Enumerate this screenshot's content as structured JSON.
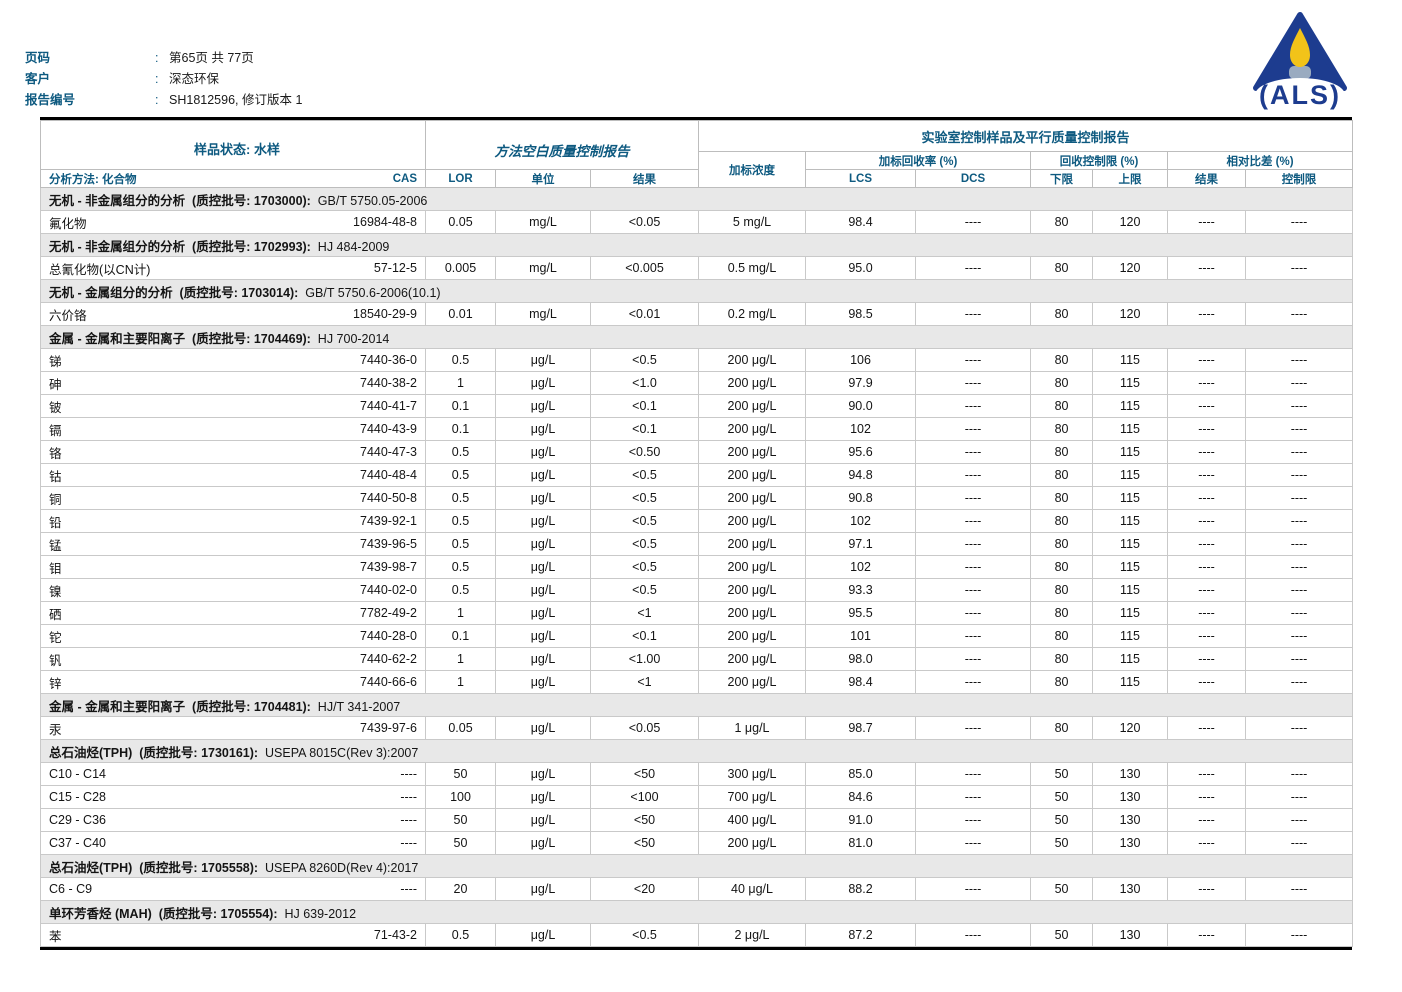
{
  "page_header": {
    "colon": ":",
    "fields": [
      {
        "label": "页码",
        "value": "第65页 共 77页"
      },
      {
        "label": "客户",
        "value": "深态环保"
      },
      {
        "label": "报告编号",
        "value": "SH1812596, 修订版本 1"
      }
    ]
  },
  "logo": {
    "name": "als-flame-logo",
    "text": "(ALS)",
    "navy": "#1d3c8f",
    "flame_yellow": "#f2c319",
    "burner_grey": "#9aabc0"
  },
  "colors": {
    "accent_blue": "#0e5a80",
    "section_bg": "#e8e8e8",
    "border_grey": "#c9c9c9",
    "thick_divider_grey": "#b3b3b3",
    "line_black": "#000000"
  },
  "table": {
    "header": {
      "sample_status": "样品状态: 水样",
      "method_blank_title": "方法空白质量控制报告",
      "lab_control_title": "实验室控制样品及平行质量控制报告",
      "spike_conc": "加标浓度",
      "spike_recovery": "加标回收率 (%)",
      "recovery_limits": "回收控制限 (%)",
      "relative_diff": "相对比差 (%)",
      "analysis_method": "分析方法: 化合物",
      "cas": "CAS",
      "lor": "LOR",
      "unit": "单位",
      "result": "结果",
      "lcs": "LCS",
      "dcs": "DCS",
      "lower": "下限",
      "upper": "上限",
      "rpd_result": "结果",
      "rpd_limit": "控制限"
    },
    "columns_order": [
      "compound",
      "cas",
      "lor",
      "unit",
      "result",
      "spike_conc",
      "lcs",
      "dcs",
      "lower",
      "upper",
      "rpd_result",
      "rpd_limit"
    ],
    "sections": [
      {
        "title": "无机 - 非金属组分的分析  (质控批号: 1703000):",
        "method": "  GB/T 5750.05-2006",
        "rows": [
          [
            "氟化物",
            "16984-48-8",
            "0.05",
            "mg/L",
            "<0.05",
            "5 mg/L",
            "98.4",
            "----",
            "80",
            "120",
            "----",
            "----"
          ]
        ]
      },
      {
        "title": "无机 - 非金属组分的分析  (质控批号: 1702993):",
        "method": "  HJ 484-2009",
        "rows": [
          [
            "总氰化物(以CN计)",
            "57-12-5",
            "0.005",
            "mg/L",
            "<0.005",
            "0.5 mg/L",
            "95.0",
            "----",
            "80",
            "120",
            "----",
            "----"
          ]
        ]
      },
      {
        "title": "无机 - 金属组分的分析  (质控批号: 1703014):",
        "method": "  GB/T 5750.6-2006(10.1)",
        "rows": [
          [
            "六价铬",
            "18540-29-9",
            "0.01",
            "mg/L",
            "<0.01",
            "0.2 mg/L",
            "98.5",
            "----",
            "80",
            "120",
            "----",
            "----"
          ]
        ]
      },
      {
        "title": "金属 - 金属和主要阳离子  (质控批号: 1704469):",
        "method": "  HJ 700-2014",
        "rows": [
          [
            "锑",
            "7440-36-0",
            "0.5",
            "μg/L",
            "<0.5",
            "200 μg/L",
            "106",
            "----",
            "80",
            "115",
            "----",
            "----"
          ],
          [
            "砷",
            "7440-38-2",
            "1",
            "μg/L",
            "<1.0",
            "200 μg/L",
            "97.9",
            "----",
            "80",
            "115",
            "----",
            "----"
          ],
          [
            "铍",
            "7440-41-7",
            "0.1",
            "μg/L",
            "<0.1",
            "200 μg/L",
            "90.0",
            "----",
            "80",
            "115",
            "----",
            "----"
          ],
          [
            "镉",
            "7440-43-9",
            "0.1",
            "μg/L",
            "<0.1",
            "200 μg/L",
            "102",
            "----",
            "80",
            "115",
            "----",
            "----"
          ],
          [
            "铬",
            "7440-47-3",
            "0.5",
            "μg/L",
            "<0.50",
            "200 μg/L",
            "95.6",
            "----",
            "80",
            "115",
            "----",
            "----"
          ],
          [
            "钴",
            "7440-48-4",
            "0.5",
            "μg/L",
            "<0.5",
            "200 μg/L",
            "94.8",
            "----",
            "80",
            "115",
            "----",
            "----"
          ],
          [
            "铜",
            "7440-50-8",
            "0.5",
            "μg/L",
            "<0.5",
            "200 μg/L",
            "90.8",
            "----",
            "80",
            "115",
            "----",
            "----"
          ],
          [
            "铅",
            "7439-92-1",
            "0.5",
            "μg/L",
            "<0.5",
            "200 μg/L",
            "102",
            "----",
            "80",
            "115",
            "----",
            "----"
          ],
          [
            "锰",
            "7439-96-5",
            "0.5",
            "μg/L",
            "<0.5",
            "200 μg/L",
            "97.1",
            "----",
            "80",
            "115",
            "----",
            "----"
          ],
          [
            "钼",
            "7439-98-7",
            "0.5",
            "μg/L",
            "<0.5",
            "200 μg/L",
            "102",
            "----",
            "80",
            "115",
            "----",
            "----"
          ],
          [
            "镍",
            "7440-02-0",
            "0.5",
            "μg/L",
            "<0.5",
            "200 μg/L",
            "93.3",
            "----",
            "80",
            "115",
            "----",
            "----"
          ],
          [
            "硒",
            "7782-49-2",
            "1",
            "μg/L",
            "<1",
            "200 μg/L",
            "95.5",
            "----",
            "80",
            "115",
            "----",
            "----"
          ],
          [
            "铊",
            "7440-28-0",
            "0.1",
            "μg/L",
            "<0.1",
            "200 μg/L",
            "101",
            "----",
            "80",
            "115",
            "----",
            "----"
          ],
          [
            "钒",
            "7440-62-2",
            "1",
            "μg/L",
            "<1.00",
            "200 μg/L",
            "98.0",
            "----",
            "80",
            "115",
            "----",
            "----"
          ],
          [
            "锌",
            "7440-66-6",
            "1",
            "μg/L",
            "<1",
            "200 μg/L",
            "98.4",
            "----",
            "80",
            "115",
            "----",
            "----"
          ]
        ]
      },
      {
        "title": "金属 - 金属和主要阳离子  (质控批号: 1704481):",
        "method": "  HJ/T 341-2007",
        "rows": [
          [
            "汞",
            "7439-97-6",
            "0.05",
            "μg/L",
            "<0.05",
            "1 μg/L",
            "98.7",
            "----",
            "80",
            "120",
            "----",
            "----"
          ]
        ]
      },
      {
        "title": "总石油烃(TPH)  (质控批号: 1730161):",
        "method": "  USEPA 8015C(Rev 3):2007",
        "rows": [
          [
            "C10 - C14",
            "----",
            "50",
            "μg/L",
            "<50",
            "300 μg/L",
            "85.0",
            "----",
            "50",
            "130",
            "----",
            "----"
          ],
          [
            "C15 - C28",
            "----",
            "100",
            "μg/L",
            "<100",
            "700 μg/L",
            "84.6",
            "----",
            "50",
            "130",
            "----",
            "----"
          ],
          [
            "C29 - C36",
            "----",
            "50",
            "μg/L",
            "<50",
            "400 μg/L",
            "91.0",
            "----",
            "50",
            "130",
            "----",
            "----"
          ],
          [
            "C37 - C40",
            "----",
            "50",
            "μg/L",
            "<50",
            "200 μg/L",
            "81.0",
            "----",
            "50",
            "130",
            "----",
            "----"
          ]
        ]
      },
      {
        "title": "总石油烃(TPH)  (质控批号: 1705558):",
        "method": "  USEPA 8260D(Rev 4):2017",
        "rows": [
          [
            "C6 - C9",
            "----",
            "20",
            "μg/L",
            "<20",
            "40 μg/L",
            "88.2",
            "----",
            "50",
            "130",
            "----",
            "----"
          ]
        ]
      },
      {
        "title": "单环芳香烃 (MAH)  (质控批号: 1705554):",
        "method": "  HJ 639-2012",
        "rows": [
          [
            "苯",
            "71-43-2",
            "0.5",
            "μg/L",
            "<0.5",
            "2 μg/L",
            "87.2",
            "----",
            "50",
            "130",
            "----",
            "----"
          ]
        ]
      }
    ]
  }
}
